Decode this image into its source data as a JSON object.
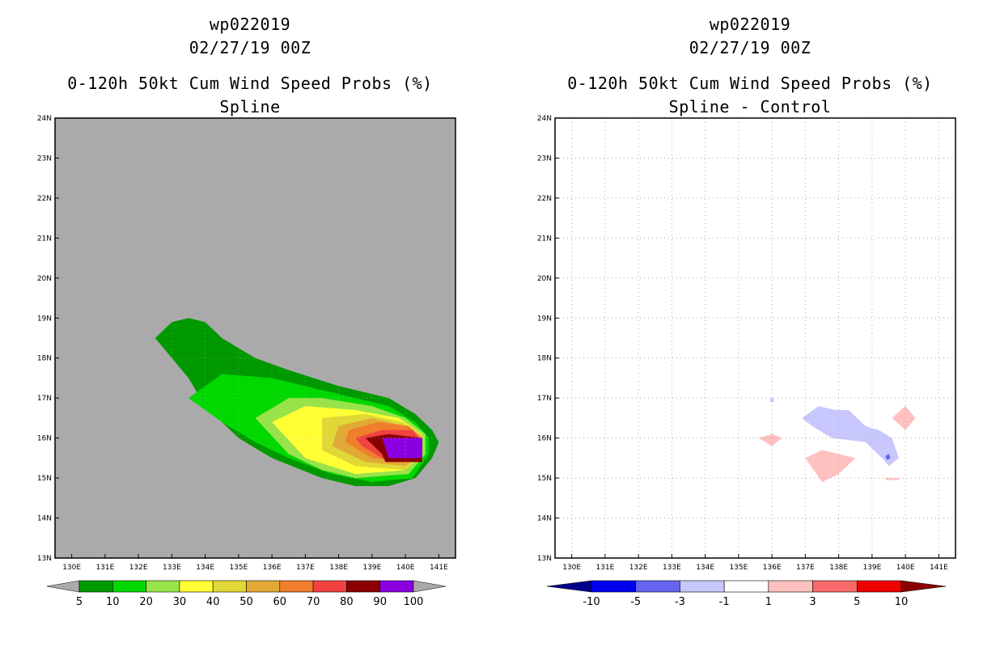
{
  "chart_data": [
    {
      "type": "contour",
      "storm_id": "wp022019",
      "datetime": "02/27/19 00Z",
      "title": "0-120h 50kt Cum Wind Speed Probs (%)",
      "subtitle": "Spline",
      "x_ticks": [
        "130E",
        "131E",
        "132E",
        "133E",
        "134E",
        "135E",
        "136E",
        "137E",
        "138E",
        "139E",
        "140E",
        "141E"
      ],
      "y_ticks": [
        "13N",
        "14N",
        "15N",
        "16N",
        "17N",
        "18N",
        "19N",
        "20N",
        "21N",
        "22N",
        "23N",
        "24N"
      ],
      "xlim": [
        129.5,
        141.5
      ],
      "ylim": [
        13,
        24
      ],
      "background_color": "#aaaaaa",
      "colorbar": {
        "labels": [
          "5",
          "10",
          "20",
          "30",
          "40",
          "50",
          "60",
          "70",
          "80",
          "90",
          "100"
        ],
        "colors": [
          "#009900",
          "#00d800",
          "#99e34a",
          "#ffff33",
          "#e0d836",
          "#e2aa35",
          "#f07e2c",
          "#f14141",
          "#8a0000",
          "#8a00e0"
        ],
        "under_color": "#aaaaaa",
        "over_color": "#aaaaaa"
      },
      "contours": [
        {
          "level": 5,
          "color": "#009900",
          "points": [
            [
              132.5,
              18.5
            ],
            [
              133.0,
              18.9
            ],
            [
              133.5,
              19.0
            ],
            [
              134.0,
              18.9
            ],
            [
              134.5,
              18.5
            ],
            [
              135.5,
              18.0
            ],
            [
              136.5,
              17.7
            ],
            [
              138.0,
              17.3
            ],
            [
              139.5,
              17.0
            ],
            [
              140.3,
              16.6
            ],
            [
              140.8,
              16.2
            ],
            [
              141.0,
              15.9
            ],
            [
              140.8,
              15.5
            ],
            [
              140.3,
              15.0
            ],
            [
              139.5,
              14.8
            ],
            [
              138.5,
              14.8
            ],
            [
              137.5,
              15.0
            ],
            [
              136.0,
              15.5
            ],
            [
              135.0,
              16.0
            ],
            [
              134.0,
              16.8
            ],
            [
              133.5,
              17.5
            ],
            [
              133.0,
              18.0
            ]
          ]
        },
        {
          "level": 10,
          "color": "#00d800",
          "points": [
            [
              133.5,
              17.0
            ],
            [
              134.5,
              17.6
            ],
            [
              136.0,
              17.5
            ],
            [
              138.0,
              17.1
            ],
            [
              139.5,
              16.8
            ],
            [
              140.3,
              16.4
            ],
            [
              140.7,
              16.0
            ],
            [
              140.7,
              15.6
            ],
            [
              140.2,
              15.0
            ],
            [
              139.0,
              14.9
            ],
            [
              137.8,
              15.1
            ],
            [
              136.5,
              15.5
            ],
            [
              135.5,
              15.9
            ],
            [
              134.5,
              16.4
            ]
          ]
        },
        {
          "level": 20,
          "color": "#99e34a",
          "points": [
            [
              135.5,
              16.5
            ],
            [
              136.5,
              17.0
            ],
            [
              137.5,
              17.0
            ],
            [
              139.0,
              16.8
            ],
            [
              140.0,
              16.5
            ],
            [
              140.6,
              16.1
            ],
            [
              140.6,
              15.6
            ],
            [
              140.1,
              15.1
            ],
            [
              138.5,
              15.0
            ],
            [
              137.5,
              15.2
            ],
            [
              136.5,
              15.6
            ]
          ]
        },
        {
          "level": 30,
          "color": "#ffff33",
          "points": [
            [
              136.0,
              16.4
            ],
            [
              137.0,
              16.8
            ],
            [
              138.5,
              16.7
            ],
            [
              139.8,
              16.5
            ],
            [
              140.5,
              16.1
            ],
            [
              140.5,
              15.6
            ],
            [
              140.0,
              15.2
            ],
            [
              138.5,
              15.1
            ],
            [
              137.0,
              15.5
            ]
          ]
        },
        {
          "level": 40,
          "color": "#e0d836",
          "points": [
            [
              137.5,
              16.5
            ],
            [
              138.8,
              16.6
            ],
            [
              139.9,
              16.4
            ],
            [
              140.5,
              16.1
            ],
            [
              140.5,
              15.6
            ],
            [
              140.0,
              15.2
            ],
            [
              138.5,
              15.3
            ],
            [
              137.5,
              15.7
            ]
          ]
        },
        {
          "level": 50,
          "color": "#e2aa35",
          "points": [
            [
              138.0,
              16.3
            ],
            [
              139.0,
              16.5
            ],
            [
              140.0,
              16.3
            ],
            [
              140.5,
              16.0
            ],
            [
              140.5,
              15.6
            ],
            [
              140.0,
              15.3
            ],
            [
              138.8,
              15.4
            ],
            [
              137.8,
              15.8
            ]
          ]
        },
        {
          "level": 60,
          "color": "#f07e2c",
          "points": [
            [
              138.3,
              16.2
            ],
            [
              139.2,
              16.4
            ],
            [
              140.1,
              16.3
            ],
            [
              140.5,
              16.0
            ],
            [
              140.5,
              15.6
            ],
            [
              140.0,
              15.4
            ],
            [
              139.0,
              15.5
            ],
            [
              138.2,
              15.9
            ]
          ]
        },
        {
          "level": 70,
          "color": "#f14141",
          "points": [
            [
              138.5,
              16.0
            ],
            [
              139.3,
              16.2
            ],
            [
              140.2,
              16.2
            ],
            [
              140.5,
              15.9
            ],
            [
              140.5,
              15.5
            ],
            [
              140.0,
              15.4
            ],
            [
              139.3,
              15.5
            ],
            [
              138.7,
              15.8
            ]
          ]
        },
        {
          "level": 80,
          "color": "#8a0000",
          "points": [
            [
              138.8,
              16.0
            ],
            [
              139.5,
              16.1
            ],
            [
              140.5,
              16.0
            ],
            [
              140.5,
              15.4
            ],
            [
              139.4,
              15.4
            ],
            [
              139.3,
              15.6
            ]
          ]
        },
        {
          "level": 90,
          "color": "#8a00e0",
          "points": [
            [
              139.3,
              16.0
            ],
            [
              140.5,
              16.0
            ],
            [
              140.5,
              15.5
            ],
            [
              139.5,
              15.5
            ]
          ]
        }
      ]
    },
    {
      "type": "contour",
      "storm_id": "wp022019",
      "datetime": "02/27/19 00Z",
      "title": "0-120h 50kt Cum Wind Speed Probs (%)",
      "subtitle": "Spline - Control",
      "x_ticks": [
        "130E",
        "131E",
        "132E",
        "133E",
        "134E",
        "135E",
        "136E",
        "137E",
        "138E",
        "139E",
        "140E",
        "141E"
      ],
      "y_ticks": [
        "13N",
        "14N",
        "15N",
        "16N",
        "17N",
        "18N",
        "19N",
        "20N",
        "21N",
        "22N",
        "23N",
        "24N"
      ],
      "xlim": [
        129.5,
        141.5
      ],
      "ylim": [
        13,
        24
      ],
      "background_color": "#ffffff",
      "grid": true,
      "colorbar": {
        "labels": [
          "-10",
          "-5",
          "-3",
          "-1",
          "1",
          "3",
          "5",
          "10"
        ],
        "colors": [
          "#0000ee",
          "#6464ee",
          "#c8c8ff",
          "#ffffff",
          "#ffc0c0",
          "#f86a6a",
          "#ee0000"
        ],
        "under_color": "#00008a",
        "over_color": "#8a0000"
      },
      "contours": [
        {
          "level": -3,
          "color": "#c8c8ff",
          "points": [
            [
              136.9,
              16.5
            ],
            [
              137.4,
              16.8
            ],
            [
              137.9,
              16.7
            ],
            [
              138.3,
              16.7
            ],
            [
              138.8,
              16.3
            ],
            [
              139.2,
              16.2
            ],
            [
              139.6,
              16.0
            ],
            [
              139.8,
              15.5
            ],
            [
              139.5,
              15.3
            ],
            [
              139.3,
              15.5
            ],
            [
              138.8,
              15.9
            ],
            [
              137.8,
              16.0
            ],
            [
              137.2,
              16.3
            ]
          ]
        },
        {
          "level": -3,
          "color": "#c8c8ff",
          "points": [
            [
              135.95,
              17.0
            ],
            [
              136.05,
              17.0
            ],
            [
              136.05,
              16.9
            ],
            [
              135.95,
              16.9
            ]
          ]
        },
        {
          "level": -5,
          "color": "#6464ee",
          "points": [
            [
              139.4,
              15.55
            ],
            [
              139.5,
              15.6
            ],
            [
              139.55,
              15.5
            ],
            [
              139.45,
              15.45
            ]
          ]
        },
        {
          "level": 1,
          "color": "#ffc0c0",
          "points": [
            [
              135.6,
              16.0
            ],
            [
              136.0,
              16.1
            ],
            [
              136.3,
              16.0
            ],
            [
              136.0,
              15.8
            ]
          ]
        },
        {
          "level": 1,
          "color": "#ffc0c0",
          "points": [
            [
              137.0,
              15.5
            ],
            [
              137.5,
              15.7
            ],
            [
              138.0,
              15.6
            ],
            [
              138.5,
              15.5
            ],
            [
              138.0,
              15.1
            ],
            [
              137.5,
              14.9
            ]
          ]
        },
        {
          "level": 1,
          "color": "#ffc0c0",
          "points": [
            [
              139.6,
              16.5
            ],
            [
              140.0,
              16.8
            ],
            [
              140.3,
              16.5
            ],
            [
              140.0,
              16.2
            ]
          ]
        },
        {
          "level": 1,
          "color": "#ffc0c0",
          "points": [
            [
              139.4,
              15.0
            ],
            [
              139.8,
              15.0
            ],
            [
              139.8,
              14.95
            ],
            [
              139.4,
              14.95
            ]
          ]
        }
      ]
    }
  ]
}
